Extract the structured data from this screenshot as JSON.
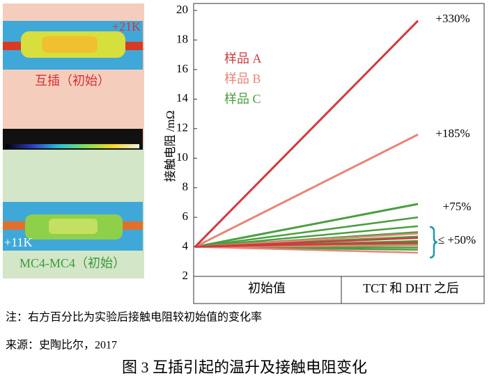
{
  "thermal_images": [
    {
      "delta": "+21K",
      "label": "互插（初始）"
    },
    {
      "delta": "+11K",
      "label": "MC4-MC4（初始）"
    }
  ],
  "chart_data": {
    "type": "line",
    "y_label": "接触电阻 /mΩ",
    "categories": [
      "初始值",
      "TCT 和 DHT 之后"
    ],
    "ylim": [
      2,
      20
    ],
    "yticks": [
      2,
      4,
      6,
      8,
      10,
      12,
      14,
      16,
      18,
      20
    ],
    "series": [
      {
        "name": "样品 A",
        "color": "#d2393f",
        "lines": [
          [
            4,
            19.3
          ],
          [
            4,
            4.6
          ],
          [
            4,
            4.3
          ]
        ]
      },
      {
        "name": "样品 B",
        "color": "#e98478",
        "lines": [
          [
            4,
            11.6
          ],
          [
            4,
            4.9
          ],
          [
            4,
            3.6
          ],
          [
            4,
            4.1
          ]
        ]
      },
      {
        "name": "样品 C",
        "color": "#4a9e3f",
        "lines": [
          [
            4,
            6.9
          ],
          [
            4,
            6.0
          ],
          [
            4,
            5.4
          ],
          [
            4,
            5.0
          ],
          [
            4,
            4.7
          ],
          [
            4,
            4.4
          ],
          [
            4,
            4.2
          ],
          [
            4,
            3.95
          ],
          [
            4,
            3.8
          ]
        ]
      }
    ],
    "annotations": [
      "+330%",
      "+185%",
      "+75%",
      "≤ +50%"
    ]
  },
  "footer": {
    "note": "注：右方百分比为实验后接触电阻较初始值的变化率",
    "source": "来源：史陶比尔，2017",
    "caption": "图 3  互插引起的温升及接触电阻变化"
  }
}
